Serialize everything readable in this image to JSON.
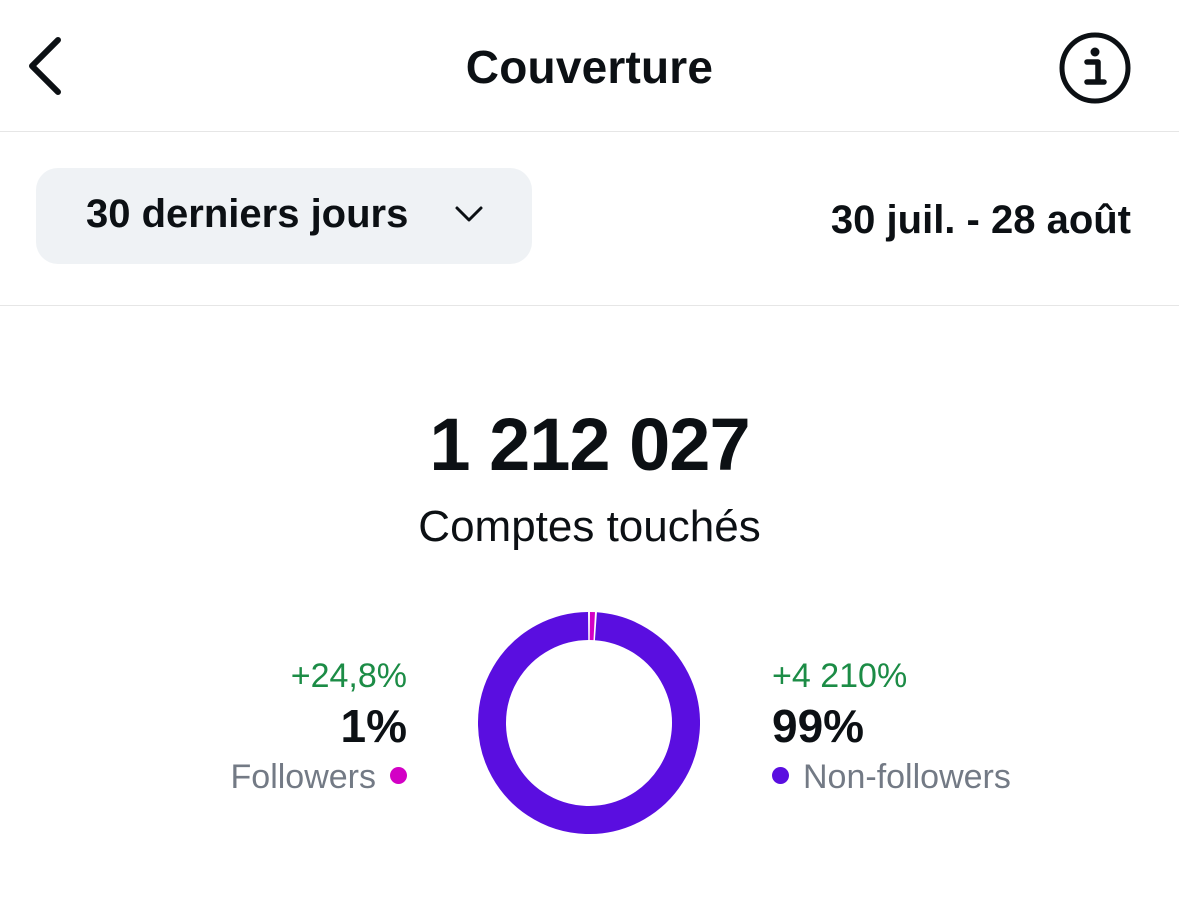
{
  "header": {
    "title": "Couverture",
    "back_icon": "chevron-left-icon",
    "info_icon": "info-icon"
  },
  "filter": {
    "range_label": "30 derniers jours",
    "dropdown_icon": "chevron-down-icon",
    "date_range": "30 juil. - 28 août"
  },
  "summary": {
    "total": "1 212 027",
    "label": "Comptes touchés"
  },
  "chart_data": {
    "type": "pie",
    "categories": [
      "Followers",
      "Non-followers"
    ],
    "values": [
      1,
      99
    ],
    "colors": [
      "#d300c5",
      "#5a0ee0"
    ],
    "deltas": [
      "+24,8%",
      "+4 210%"
    ]
  },
  "segments": {
    "followers": {
      "delta": "+24,8%",
      "percent": "1%",
      "label": "Followers",
      "color": "#d300c5"
    },
    "non_followers": {
      "delta": "+4 210%",
      "percent": "99%",
      "label": "Non-followers",
      "color": "#5a0ee0"
    }
  },
  "colors": {
    "positive": "#1c8c46",
    "muted_text": "#737a85",
    "chip_bg": "#eff2f5"
  }
}
